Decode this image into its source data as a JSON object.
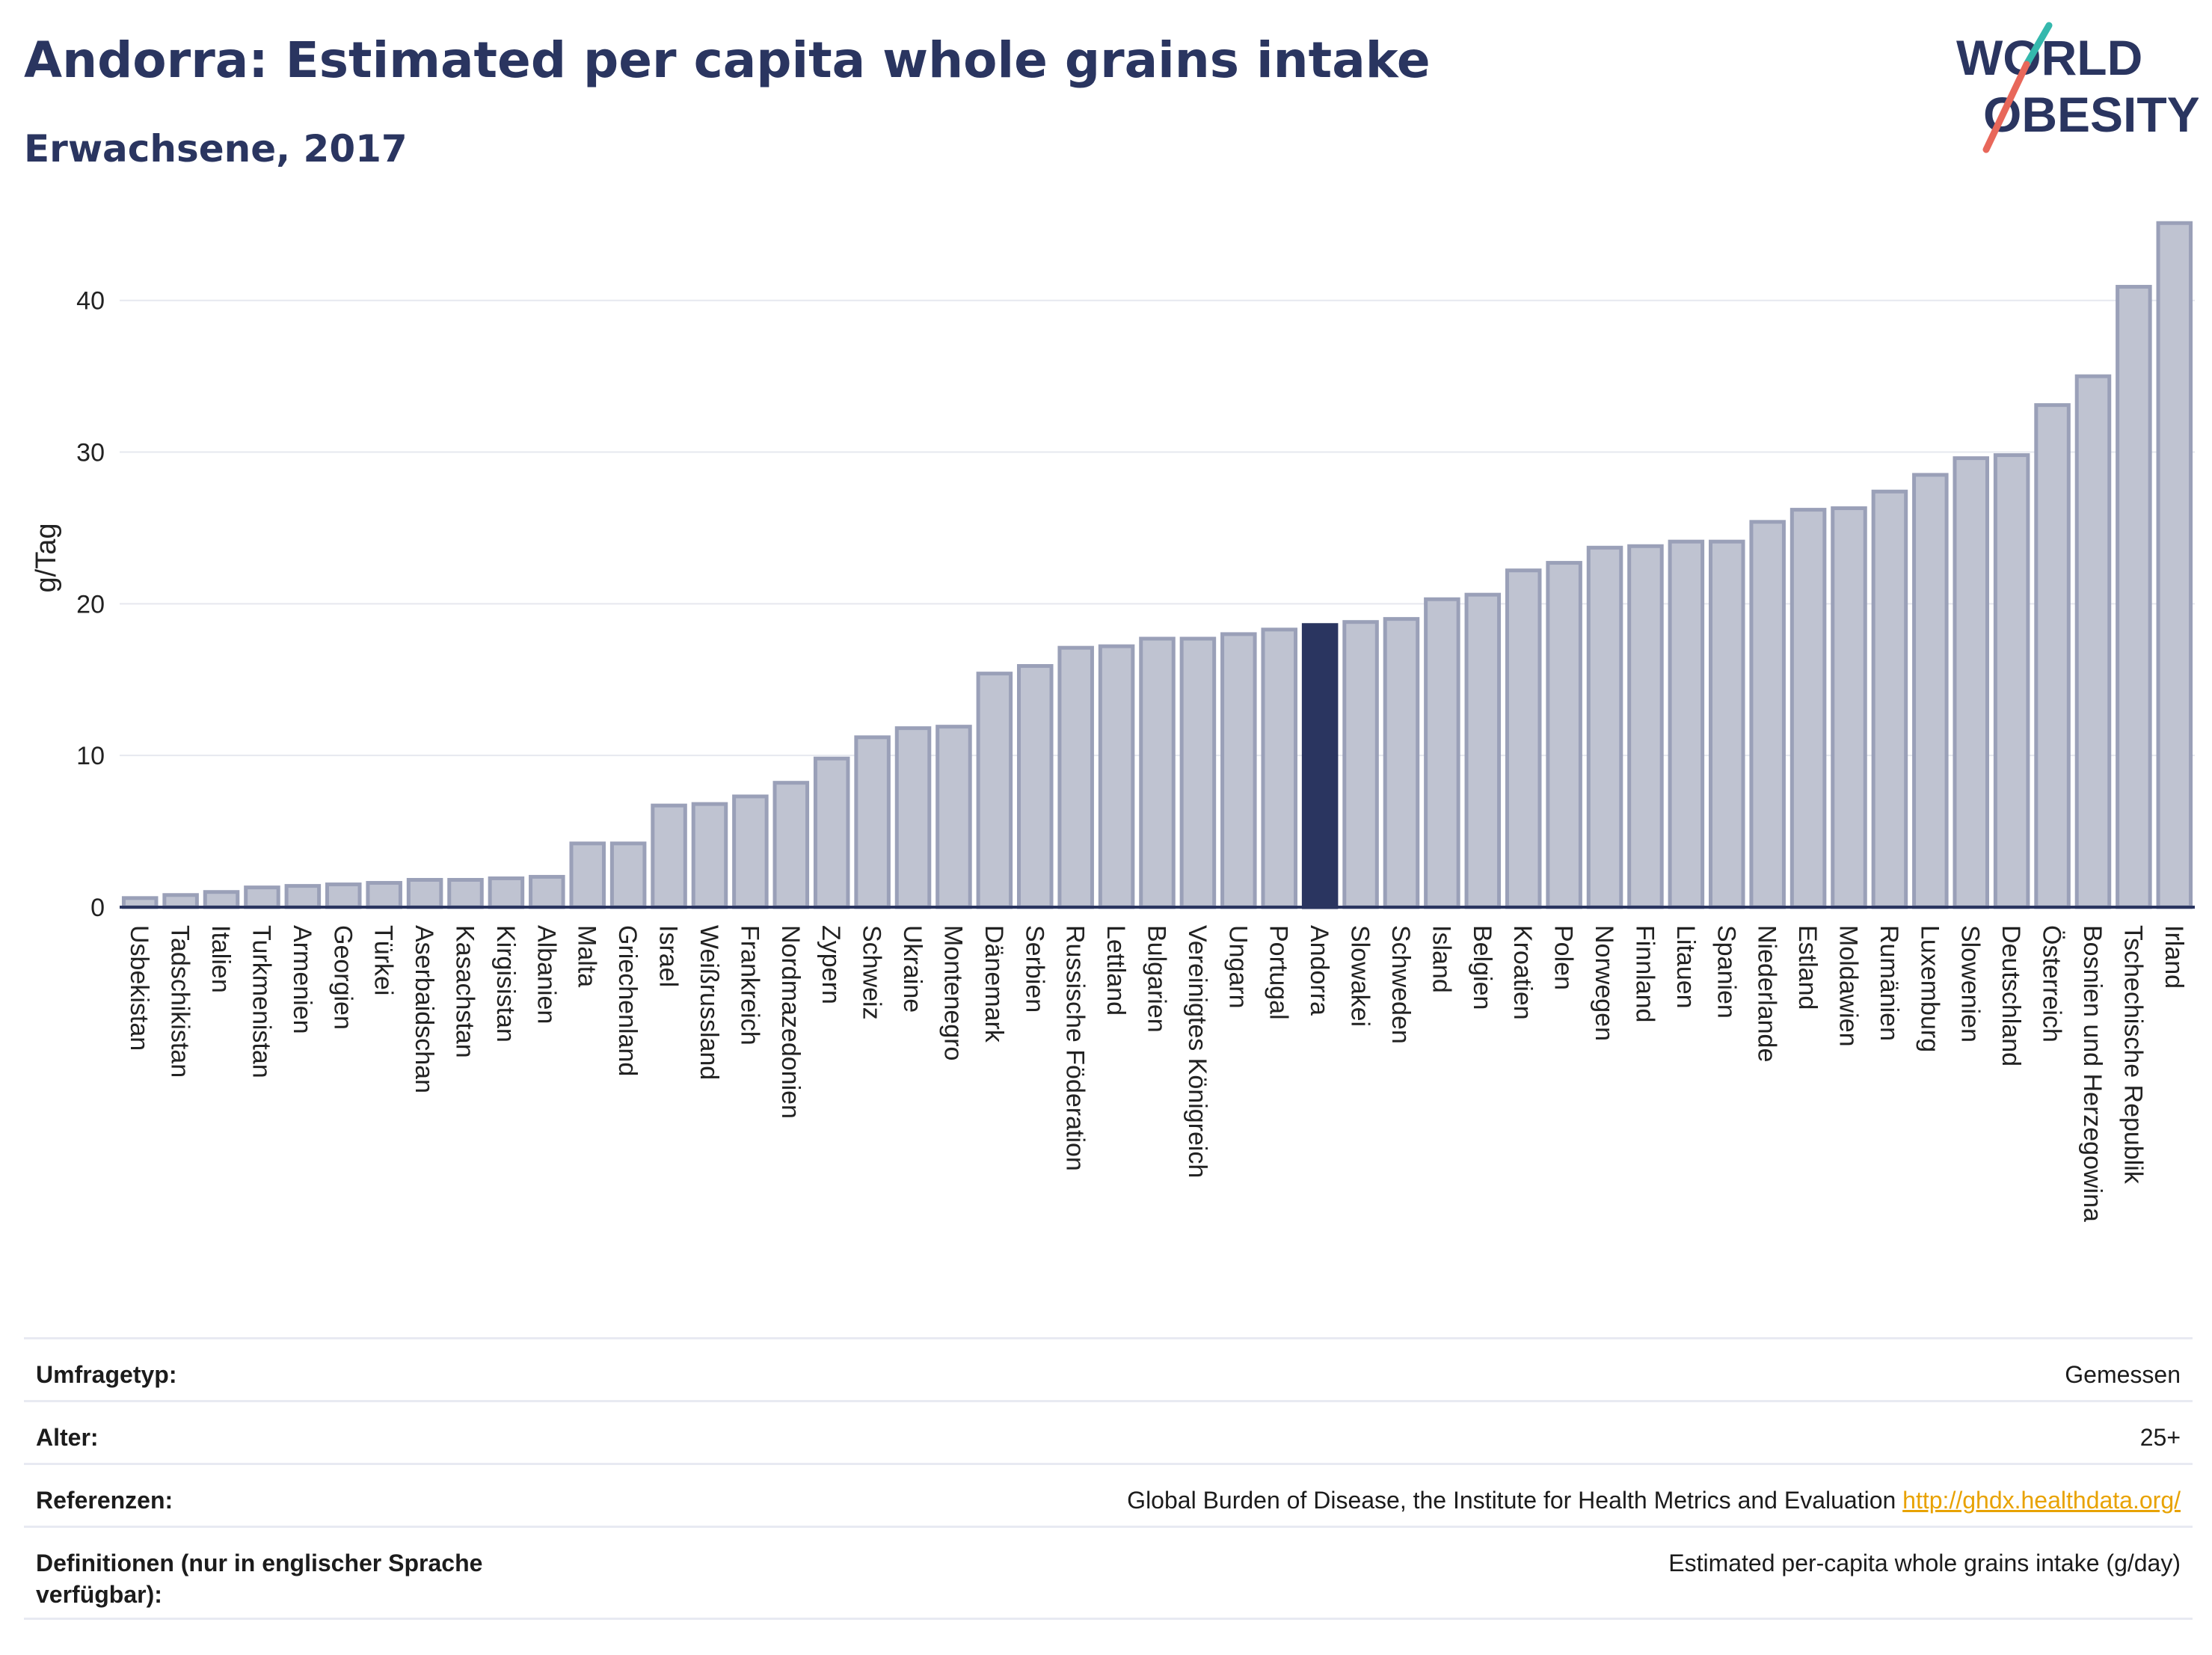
{
  "title": "Andorra: Estimated per capita whole grains intake",
  "subtitle": "Erwachsene, 2017",
  "logo": {
    "line1": "WORLD",
    "line2": "OBESITY"
  },
  "colors": {
    "bar": "#bfc3d1",
    "bar_stroke": "#9aa0b8",
    "highlight": "#2a3560",
    "axis": "#2a3560",
    "grid": "#e6e8ef"
  },
  "chart_data": {
    "type": "bar",
    "ylabel": "g/Tag",
    "ylim": [
      0,
      46
    ],
    "yticks": [
      0,
      10,
      20,
      30,
      40
    ],
    "highlight": "Andorra",
    "categories": [
      "Usbekistan",
      "Tadschikistan",
      "Italien",
      "Turkmenistan",
      "Armenien",
      "Georgien",
      "Türkei",
      "Aserbaidschan",
      "Kasachstan",
      "Kirgisistan",
      "Albanien",
      "Malta",
      "Griechenland",
      "Israel",
      "Weißrussland",
      "Frankreich",
      "Nordmazedonien",
      "Zypern",
      "Schweiz",
      "Ukraine",
      "Montenegro",
      "Dänemark",
      "Serbien",
      "Russische Föderation",
      "Lettland",
      "Bulgarien",
      "Vereinigtes Königreich",
      "Ungarn",
      "Portugal",
      "Andorra",
      "Slowakei",
      "Schweden",
      "Island",
      "Belgien",
      "Kroatien",
      "Polen",
      "Norwegen",
      "Finnland",
      "Litauen",
      "Spanien",
      "Niederlande",
      "Estland",
      "Moldawien",
      "Rumänien",
      "Luxemburg",
      "Slowenien",
      "Deutschland",
      "Österreich",
      "Bosnien und Herzegowina",
      "Tschechische Republik",
      "Irland"
    ],
    "values": [
      0.6,
      0.8,
      1.0,
      1.3,
      1.4,
      1.5,
      1.6,
      1.8,
      1.8,
      1.9,
      2.0,
      4.2,
      4.2,
      6.7,
      6.8,
      7.3,
      8.2,
      9.8,
      11.2,
      11.8,
      11.9,
      15.4,
      15.9,
      17.1,
      17.2,
      17.7,
      17.7,
      18.0,
      18.3,
      18.6,
      18.8,
      19.0,
      20.3,
      20.6,
      22.2,
      22.7,
      23.7,
      23.8,
      24.1,
      24.1,
      25.4,
      26.2,
      26.3,
      27.4,
      28.5,
      29.6,
      29.8,
      33.1,
      35.0,
      40.9,
      45.1
    ]
  },
  "info": [
    {
      "label": "Umfragetyp:",
      "value": "Gemessen"
    },
    {
      "label": "Alter:",
      "value": "25+"
    },
    {
      "label": "Referenzen:",
      "value": "Global Burden of Disease, the Institute for Health Metrics and Evaluation",
      "link": "http://ghdx.healthdata.org/"
    },
    {
      "label": "Definitionen (nur in englischer Sprache verfügbar):",
      "value": "Estimated per-capita whole grains intake (g/day)"
    }
  ]
}
